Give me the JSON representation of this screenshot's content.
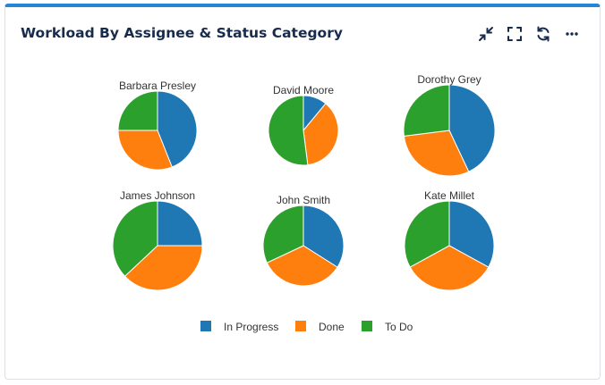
{
  "widget": {
    "title": "Workload By Assignee & Status Category",
    "toolbar": [
      {
        "name": "collapse-icon"
      },
      {
        "name": "fullscreen-icon"
      },
      {
        "name": "refresh-icon"
      },
      {
        "name": "more-options-icon"
      }
    ]
  },
  "chart_data": {
    "type": "pie",
    "title": "Workload By Assignee & Status Category",
    "legend_position": "bottom",
    "series_names": [
      "In Progress",
      "Done",
      "To Do"
    ],
    "colors": {
      "In Progress": "#1f77b4",
      "Done": "#ff7f0e",
      "To Do": "#2ca02c"
    },
    "pies": [
      {
        "label": "Barbara Presley",
        "values": [
          44,
          31,
          25
        ]
      },
      {
        "label": "David Moore",
        "values": [
          11,
          37,
          52
        ]
      },
      {
        "label": "Dorothy Grey",
        "values": [
          43,
          30,
          27
        ]
      },
      {
        "label": "James Johnson",
        "values": [
          25,
          38,
          37
        ]
      },
      {
        "label": "John Smith",
        "values": [
          34,
          34,
          32
        ]
      },
      {
        "label": "Kate Millet",
        "values": [
          33,
          34,
          33
        ]
      }
    ]
  }
}
